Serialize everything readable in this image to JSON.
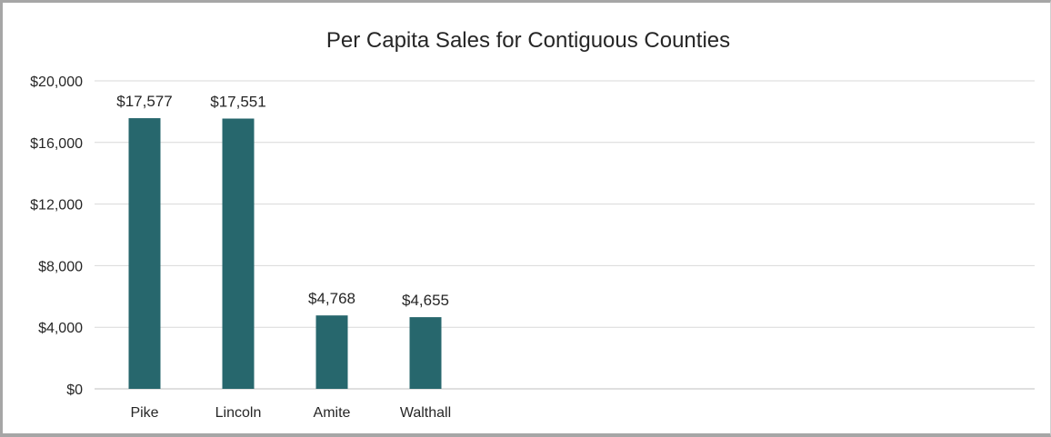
{
  "chart_data": {
    "type": "bar",
    "title": "Per Capita Sales for Contiguous Counties",
    "xlabel": "",
    "ylabel": "",
    "categories": [
      "Pike",
      "Lincoln",
      "Amite",
      "Walthall"
    ],
    "values": [
      17577,
      17551,
      4768,
      4655
    ],
    "data_labels": [
      "$17,577",
      "$17,551",
      "$4,768",
      "$4,655"
    ],
    "ylim": [
      0,
      20000
    ],
    "y_ticks": [
      0,
      4000,
      8000,
      12000,
      16000,
      20000
    ],
    "y_tick_labels": [
      "$0",
      "$4,000",
      "$8,000",
      "$12,000",
      "$16,000",
      "$20,000"
    ],
    "bar_color": "#27676d",
    "grid": true,
    "legend": "none"
  }
}
